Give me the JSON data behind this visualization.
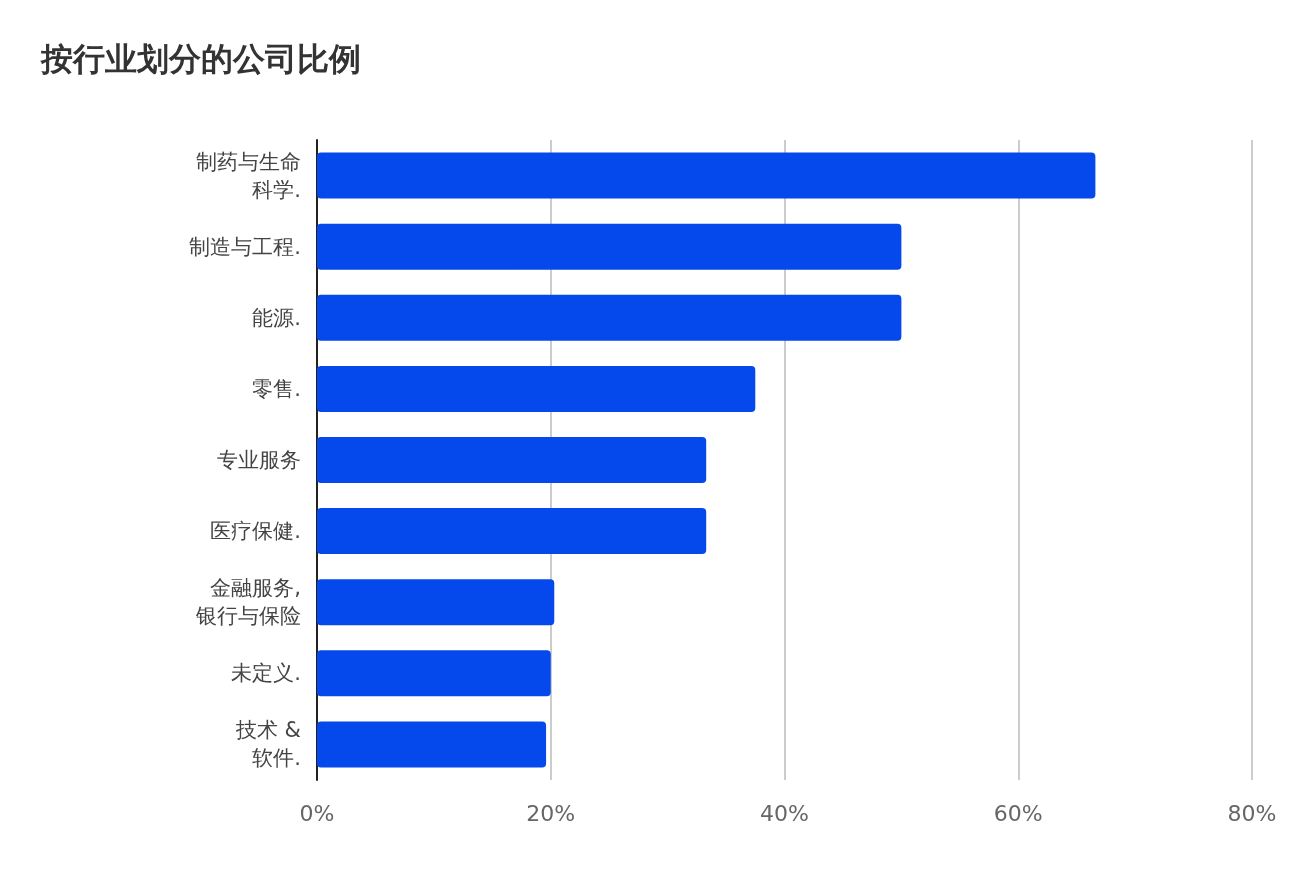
{
  "chart_data": {
    "type": "bar",
    "orientation": "horizontal",
    "title": "按行业划分的公司比例",
    "categories": [
      "制药与生命科学.",
      "制造与工程.",
      "能源.",
      "零售.",
      "专业服务",
      "医疗保健.",
      "金融服务,\n银行与保险",
      "未定义.",
      "技术 &\n软件."
    ],
    "values": [
      66.6,
      50,
      50,
      37.5,
      33.3,
      33.3,
      20.3,
      20,
      19.6
    ],
    "color": "#0548ec",
    "xlim": [
      0,
      80
    ],
    "xticks": [
      {
        "value": 0,
        "label": "0%"
      },
      {
        "value": 20,
        "label": "20%"
      },
      {
        "value": 40,
        "label": "40%"
      },
      {
        "value": 60,
        "label": "60%"
      },
      {
        "value": 80,
        "label": "80%"
      }
    ],
    "grid": "x"
  }
}
